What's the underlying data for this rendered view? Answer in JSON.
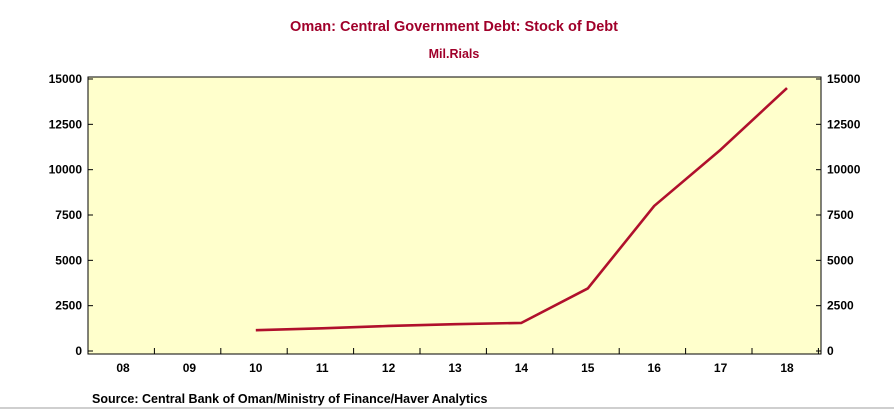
{
  "chart_data": {
    "type": "line",
    "title": "Oman: Central Government Debt: Stock of Debt",
    "subtitle": "Mil.Rials",
    "source": "Source:  Central Bank of Oman/Ministry of Finance/Haver Analytics",
    "x_ticks": [
      "08",
      "09",
      "10",
      "11",
      "12",
      "13",
      "14",
      "15",
      "16",
      "17",
      "18"
    ],
    "y_ticks": [
      0,
      2500,
      5000,
      7500,
      10000,
      12500,
      15000
    ],
    "ylim": [
      0,
      15000
    ],
    "grid": false,
    "colors": {
      "plot_background": "#ffffcc",
      "line": "#b0102c",
      "title": "#a0002a"
    },
    "series": [
      {
        "name": "",
        "x": [
          "10",
          "11",
          "12",
          "13",
          "14",
          "15",
          "16",
          "17",
          "18"
        ],
        "values": [
          1150,
          1250,
          1380,
          1480,
          1550,
          3450,
          8000,
          11100,
          14500
        ]
      }
    ]
  }
}
